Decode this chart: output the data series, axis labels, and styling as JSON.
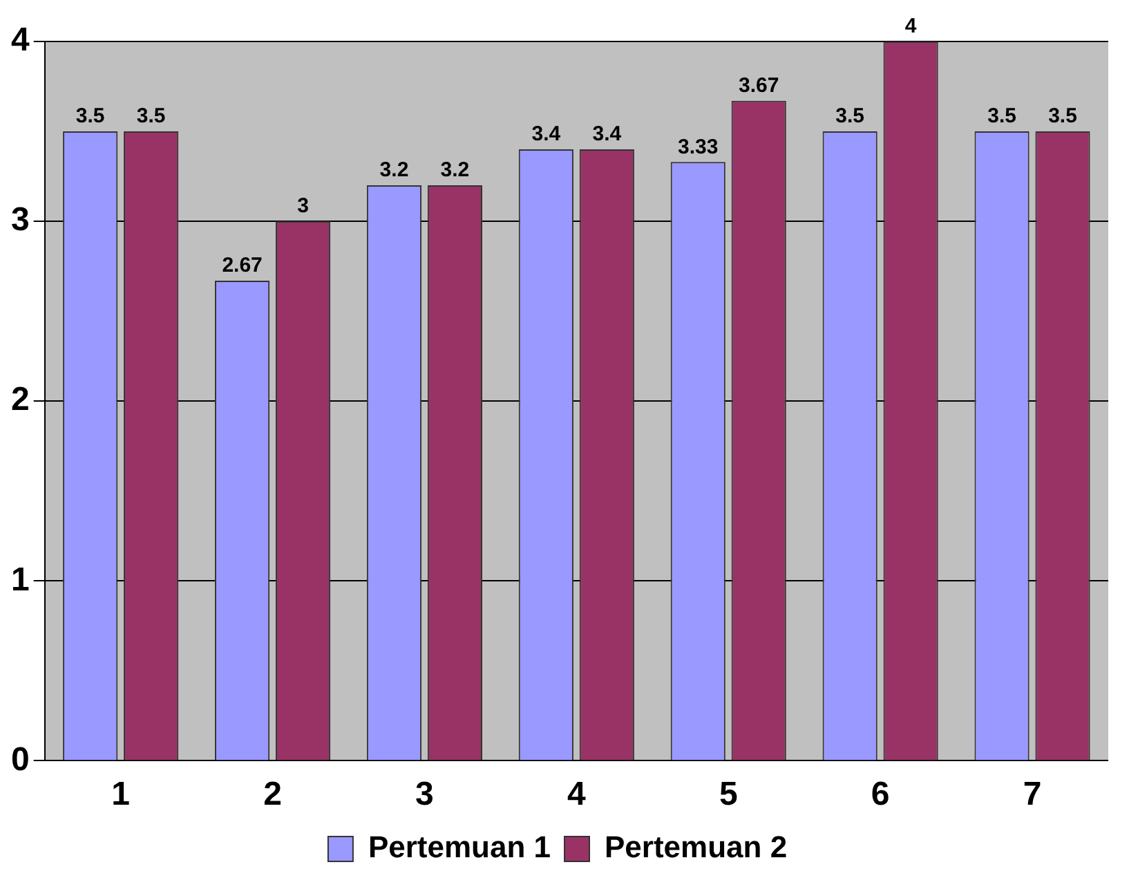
{
  "chart_data": {
    "type": "bar",
    "categories": [
      "1",
      "2",
      "3",
      "4",
      "5",
      "6",
      "7"
    ],
    "series": [
      {
        "name": "Pertemuan 1",
        "color": "#9999ff",
        "values": [
          3.5,
          2.67,
          3.2,
          3.4,
          3.33,
          3.5,
          3.5
        ]
      },
      {
        "name": "Pertemuan 2",
        "color": "#993366",
        "values": [
          3.5,
          3,
          3.2,
          3.4,
          3.67,
          4,
          3.5
        ]
      }
    ],
    "ylim": [
      0,
      4
    ],
    "yticks": [
      0,
      1,
      2,
      3,
      4
    ],
    "grid": "y",
    "legend": "bottom",
    "data_labels": true
  }
}
